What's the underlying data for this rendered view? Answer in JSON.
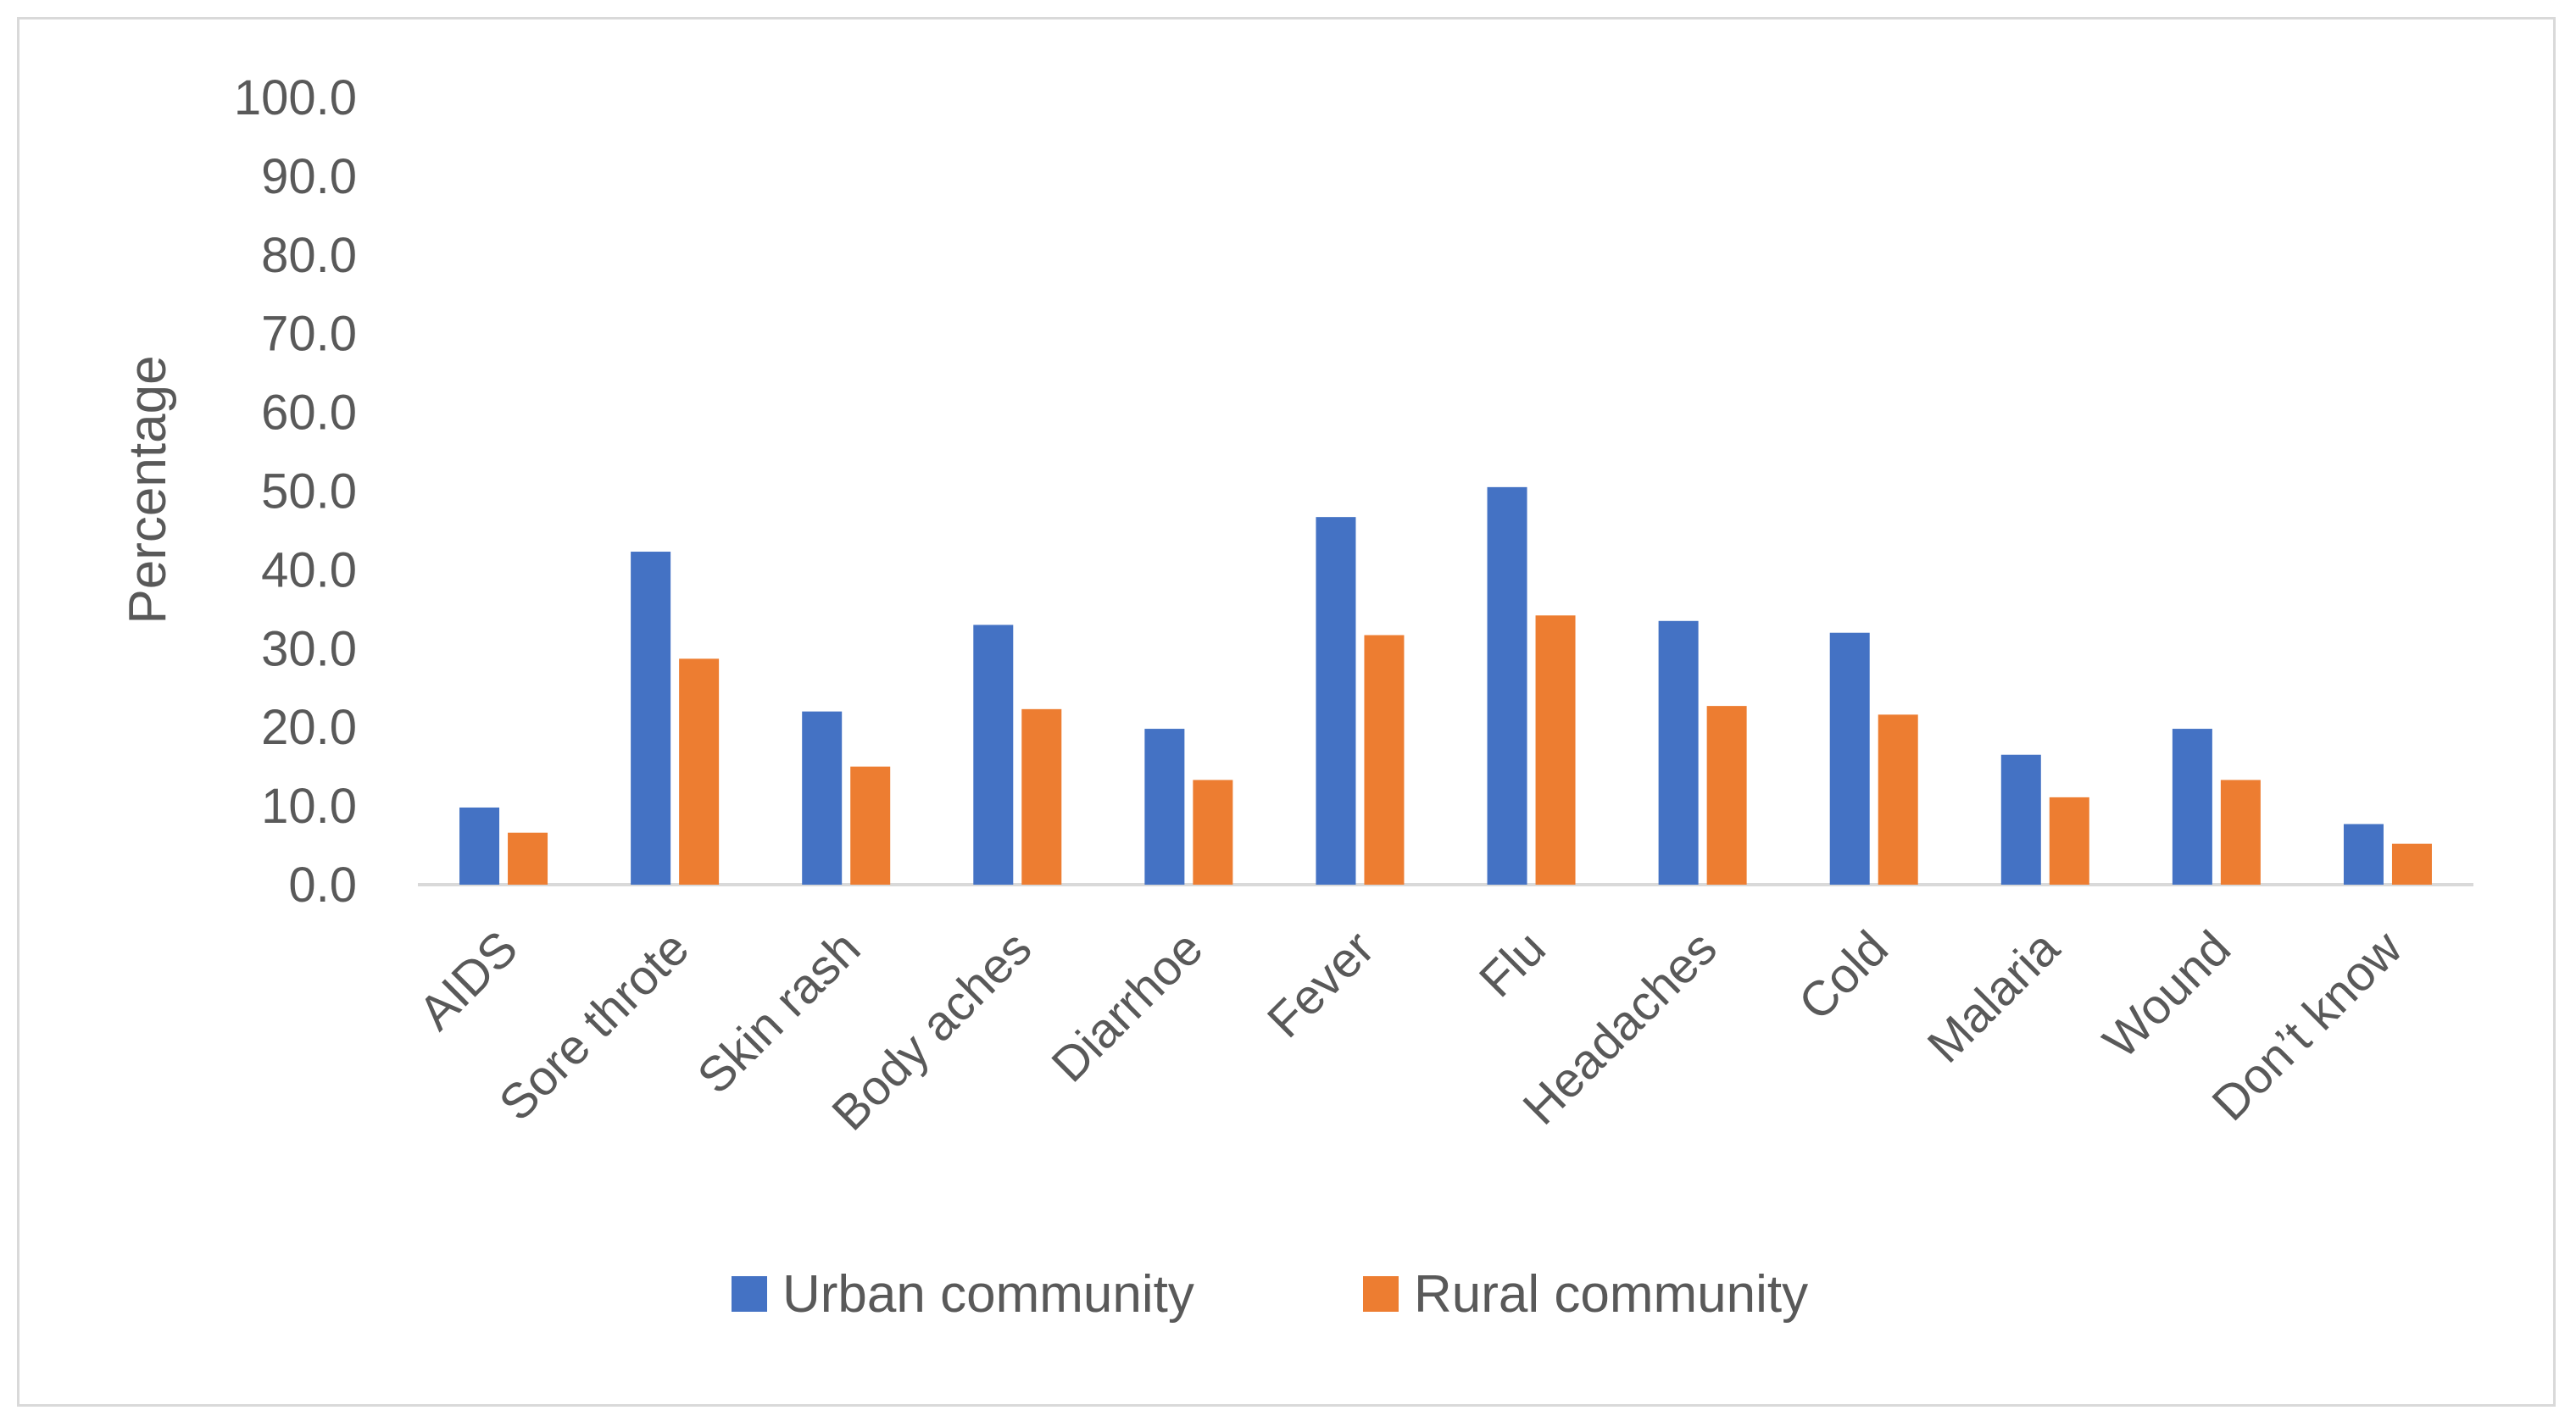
{
  "chart_data": {
    "type": "bar",
    "title": "",
    "xlabel": "",
    "ylabel": "Percentage",
    "ylim": [
      0,
      100
    ],
    "yticks": [
      "0.0",
      "10.0",
      "20.0",
      "30.0",
      "40.0",
      "50.0",
      "60.0",
      "70.0",
      "80.0",
      "90.0",
      "100.0"
    ],
    "categories": [
      "AIDS",
      "Sore throte",
      "Skin rash",
      "Body aches",
      "Diarrhoe",
      "Fever",
      "Flu",
      "Headaches",
      "Cold",
      "Malaria",
      "Wound",
      "Don’t know"
    ],
    "series": [
      {
        "name": "Urban community",
        "color": "#4472C4",
        "values": [
          9.8,
          42.3,
          22.0,
          33.0,
          19.8,
          46.7,
          50.5,
          33.5,
          32.0,
          16.5,
          19.8,
          7.7
        ]
      },
      {
        "name": "Rural community",
        "color": "#ED7D31",
        "values": [
          6.6,
          28.7,
          15.0,
          22.3,
          13.3,
          31.7,
          34.2,
          22.7,
          21.6,
          11.1,
          13.3,
          5.2
        ]
      }
    ],
    "legend_position": "bottom",
    "grid": false
  }
}
